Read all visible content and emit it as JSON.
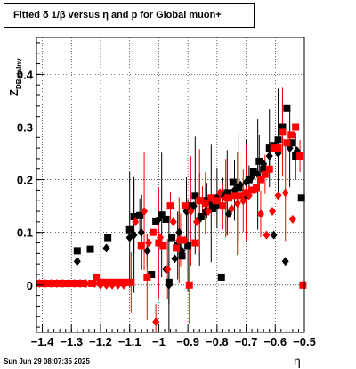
{
  "title": "Fitted δ 1/β versus η and p for Global muon+",
  "footer": {
    "datestamp": "Sun Jun 29 08:07:35 2025"
  },
  "chart_data": {
    "type": "scatter",
    "title": "Fitted δ 1/β versus η and p for Global muon+",
    "xlabel": "η",
    "ylabel": "Z_DBetaInv",
    "xlim": [
      -1.42,
      -0.5
    ],
    "ylim": [
      -0.09,
      0.47
    ],
    "grid": true,
    "x_ticks": [
      -1.4,
      -1.3,
      -1.2,
      -1.1,
      -1,
      -0.9,
      -0.8,
      -0.7,
      -0.6,
      -0.5
    ],
    "x_tick_labels": [
      "−1.4",
      "−1.3",
      "−1.2",
      "−1.1",
      "−1",
      "−0.9",
      "−0.8",
      "−0.7",
      "−0.6",
      "−0.5"
    ],
    "y_ticks": [
      0,
      0.1,
      0.2,
      0.3,
      0.4
    ],
    "y_tick_labels": [
      "0",
      "0.1",
      "0.2",
      "0.3",
      "0.4"
    ],
    "series": [
      {
        "color": "#000000",
        "marker": "square",
        "points": [
          {
            "x": -1.28,
            "y": 0.065
          },
          {
            "x": -1.235,
            "y": 0.068
          },
          {
            "x": -1.175,
            "y": 0.09
          },
          {
            "x": -1.1,
            "y": 0.105
          },
          {
            "x": -1.085,
            "y": 0.13
          },
          {
            "x": -1.065,
            "y": 0.132
          },
          {
            "x": -1.025,
            "y": 0.02
          },
          {
            "x": -1.01,
            "y": 0.12
          },
          {
            "x": -0.99,
            "y": 0.133
          },
          {
            "x": -0.975,
            "y": 0.125
          },
          {
            "x": -0.965,
            "y": 0.005
          },
          {
            "x": -0.955,
            "y": 0.09
          },
          {
            "x": -0.935,
            "y": 0.075
          },
          {
            "x": -0.92,
            "y": 0.055
          },
          {
            "x": -0.9,
            "y": 0.075
          },
          {
            "x": -0.89,
            "y": 0.15
          },
          {
            "x": -0.875,
            "y": 0.17
          },
          {
            "x": -0.855,
            "y": 0.13
          },
          {
            "x": -0.835,
            "y": 0.16
          },
          {
            "x": -0.815,
            "y": 0.145
          },
          {
            "x": -0.8,
            "y": 0.165
          },
          {
            "x": -0.785,
            "y": 0.015
          },
          {
            "x": -0.765,
            "y": 0.175
          },
          {
            "x": -0.745,
            "y": 0.195
          },
          {
            "x": -0.725,
            "y": 0.185
          },
          {
            "x": -0.705,
            "y": 0.17
          },
          {
            "x": -0.69,
            "y": 0.2
          },
          {
            "x": -0.675,
            "y": 0.215
          },
          {
            "x": -0.655,
            "y": 0.235
          },
          {
            "x": -0.64,
            "y": 0.22
          },
          {
            "x": -0.62,
            "y": 0.26
          },
          {
            "x": -0.605,
            "y": 0.265
          },
          {
            "x": -0.59,
            "y": 0.275
          },
          {
            "x": -0.575,
            "y": 0.3
          },
          {
            "x": -0.56,
            "y": 0.335
          },
          {
            "x": -0.545,
            "y": 0.27
          },
          {
            "x": -0.53,
            "y": 0.245
          },
          {
            "x": -0.51,
            "y": 0.165
          }
        ]
      },
      {
        "color": "#000000",
        "marker": "diamond",
        "points": [
          {
            "x": -1.28,
            "y": 0.045
          },
          {
            "x": -1.18,
            "y": 0.07
          },
          {
            "x": -1.1,
            "y": 0.09
          },
          {
            "x": -1.085,
            "y": 0.095
          },
          {
            "x": -1.06,
            "y": 0.1
          },
          {
            "x": -1.04,
            "y": 0.065
          },
          {
            "x": -1.0,
            "y": 0.125
          },
          {
            "x": -0.975,
            "y": 0.03
          },
          {
            "x": -0.965,
            "y": 0.0
          },
          {
            "x": -0.945,
            "y": 0.05
          },
          {
            "x": -0.93,
            "y": 0.1
          },
          {
            "x": -0.92,
            "y": 0.065
          },
          {
            "x": -0.905,
            "y": 0.14
          },
          {
            "x": -0.88,
            "y": 0.15
          },
          {
            "x": -0.86,
            "y": 0.125
          },
          {
            "x": -0.84,
            "y": 0.14
          },
          {
            "x": -0.82,
            "y": 0.155
          },
          {
            "x": -0.8,
            "y": 0.15
          },
          {
            "x": -0.78,
            "y": 0.17
          },
          {
            "x": -0.76,
            "y": 0.135
          },
          {
            "x": -0.74,
            "y": 0.18
          },
          {
            "x": -0.72,
            "y": 0.19
          },
          {
            "x": -0.7,
            "y": 0.195
          },
          {
            "x": -0.68,
            "y": 0.205
          },
          {
            "x": -0.66,
            "y": 0.21
          },
          {
            "x": -0.64,
            "y": 0.23
          },
          {
            "x": -0.62,
            "y": 0.245
          },
          {
            "x": -0.605,
            "y": 0.095
          },
          {
            "x": -0.59,
            "y": 0.25
          },
          {
            "x": -0.565,
            "y": 0.045
          },
          {
            "x": -0.55,
            "y": 0.26
          },
          {
            "x": -0.525,
            "y": 0.255
          }
        ]
      },
      {
        "color": "#ff0000",
        "marker": "square",
        "points": [
          {
            "x": -1.41,
            "y": 0.003
          },
          {
            "x": -1.395,
            "y": 0.003
          },
          {
            "x": -1.38,
            "y": 0.003
          },
          {
            "x": -1.365,
            "y": 0.003
          },
          {
            "x": -1.35,
            "y": 0.003
          },
          {
            "x": -1.335,
            "y": 0.003
          },
          {
            "x": -1.32,
            "y": 0.003
          },
          {
            "x": -1.305,
            "y": 0.003
          },
          {
            "x": -1.29,
            "y": 0.003
          },
          {
            "x": -1.275,
            "y": 0.003
          },
          {
            "x": -1.26,
            "y": 0.003
          },
          {
            "x": -1.23,
            "y": 0.003
          },
          {
            "x": -1.215,
            "y": 0.015
          },
          {
            "x": -1.2,
            "y": 0.005
          },
          {
            "x": -1.185,
            "y": 0.005
          },
          {
            "x": -1.17,
            "y": 0.005
          },
          {
            "x": -1.155,
            "y": 0.005
          },
          {
            "x": -1.14,
            "y": 0.005
          },
          {
            "x": -1.125,
            "y": 0.005
          },
          {
            "x": -1.11,
            "y": 0.005
          },
          {
            "x": -1.095,
            "y": 0.005
          },
          {
            "x": -1.06,
            "y": 0.075
          },
          {
            "x": -1.04,
            "y": 0.015
          },
          {
            "x": -1.02,
            "y": 0.1
          },
          {
            "x": -1.0,
            "y": 0.08
          },
          {
            "x": -0.985,
            "y": 0.075
          },
          {
            "x": -0.96,
            "y": 0.15
          },
          {
            "x": -0.94,
            "y": 0.07
          },
          {
            "x": -0.925,
            "y": 0.085
          },
          {
            "x": -0.91,
            "y": 0.15
          },
          {
            "x": -0.895,
            "y": 0.0
          },
          {
            "x": -0.875,
            "y": 0.08
          },
          {
            "x": -0.86,
            "y": 0.16
          },
          {
            "x": -0.84,
            "y": 0.155
          },
          {
            "x": -0.82,
            "y": 0.165
          },
          {
            "x": -0.8,
            "y": 0.16
          },
          {
            "x": -0.78,
            "y": 0.15
          },
          {
            "x": -0.76,
            "y": 0.165
          },
          {
            "x": -0.74,
            "y": 0.17
          },
          {
            "x": -0.72,
            "y": 0.17
          },
          {
            "x": -0.7,
            "y": 0.175
          },
          {
            "x": -0.68,
            "y": 0.18
          },
          {
            "x": -0.665,
            "y": 0.185
          },
          {
            "x": -0.65,
            "y": 0.2
          },
          {
            "x": -0.635,
            "y": 0.21
          },
          {
            "x": -0.62,
            "y": 0.22
          },
          {
            "x": -0.605,
            "y": 0.26
          },
          {
            "x": -0.59,
            "y": 0.26
          },
          {
            "x": -0.575,
            "y": 0.29
          },
          {
            "x": -0.56,
            "y": 0.27
          },
          {
            "x": -0.545,
            "y": 0.285
          },
          {
            "x": -0.53,
            "y": 0.3
          },
          {
            "x": -0.515,
            "y": 0.245
          },
          {
            "x": -0.505,
            "y": 0.0
          }
        ]
      },
      {
        "color": "#ff0000",
        "marker": "diamond",
        "points": [
          {
            "x": -1.41,
            "y": 0.003
          },
          {
            "x": -1.39,
            "y": 0.003
          },
          {
            "x": -1.37,
            "y": 0.003
          },
          {
            "x": -1.35,
            "y": 0.003
          },
          {
            "x": -1.33,
            "y": 0.003
          },
          {
            "x": -1.31,
            "y": 0.003
          },
          {
            "x": -1.29,
            "y": 0.003
          },
          {
            "x": -1.27,
            "y": 0.003
          },
          {
            "x": -1.25,
            "y": 0.003
          },
          {
            "x": -1.22,
            "y": 0.003
          },
          {
            "x": -1.2,
            "y": 0.0
          },
          {
            "x": -1.18,
            "y": 0.0
          },
          {
            "x": -1.16,
            "y": 0.0
          },
          {
            "x": -1.14,
            "y": 0.0
          },
          {
            "x": -1.12,
            "y": 0.0
          },
          {
            "x": -1.08,
            "y": 0.12
          },
          {
            "x": -1.05,
            "y": 0.14
          },
          {
            "x": -1.035,
            "y": 0.08
          },
          {
            "x": -1.01,
            "y": -0.07
          },
          {
            "x": -0.995,
            "y": 0.09
          },
          {
            "x": -0.97,
            "y": 0.03
          },
          {
            "x": -0.95,
            "y": 0.12
          },
          {
            "x": -0.93,
            "y": 0.085
          },
          {
            "x": -0.91,
            "y": 0.085
          },
          {
            "x": -0.89,
            "y": 0.14
          },
          {
            "x": -0.87,
            "y": 0.12
          },
          {
            "x": -0.85,
            "y": 0.16
          },
          {
            "x": -0.83,
            "y": 0.14
          },
          {
            "x": -0.81,
            "y": 0.16
          },
          {
            "x": -0.79,
            "y": 0.175
          },
          {
            "x": -0.77,
            "y": 0.165
          },
          {
            "x": -0.75,
            "y": 0.145
          },
          {
            "x": -0.73,
            "y": 0.155
          },
          {
            "x": -0.71,
            "y": 0.16
          },
          {
            "x": -0.69,
            "y": 0.17
          },
          {
            "x": -0.67,
            "y": 0.18
          },
          {
            "x": -0.65,
            "y": 0.135
          },
          {
            "x": -0.63,
            "y": 0.095
          },
          {
            "x": -0.61,
            "y": 0.14
          },
          {
            "x": -0.59,
            "y": 0.17
          },
          {
            "x": -0.565,
            "y": 0.175
          },
          {
            "x": -0.54,
            "y": 0.125
          }
        ]
      }
    ]
  }
}
